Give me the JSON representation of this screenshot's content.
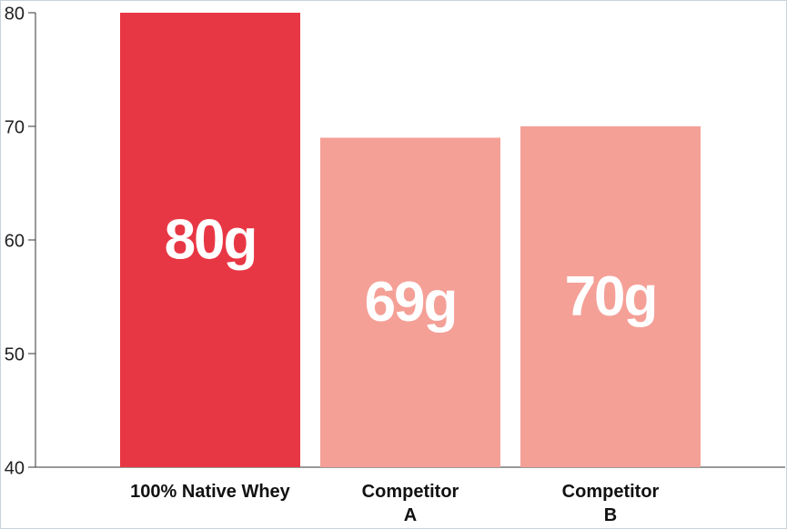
{
  "chart_data": {
    "type": "bar",
    "categories": [
      "100% Native Whey",
      "Competitor\nA",
      "Competitor\nB"
    ],
    "values": [
      80,
      69,
      70
    ],
    "value_labels": [
      "80g",
      "69g",
      "70g"
    ],
    "colors": [
      "#e83744",
      "#f4a097",
      "#f4a097"
    ],
    "ylim": [
      40,
      80
    ],
    "yticks": [
      40,
      50,
      60,
      70,
      80
    ]
  }
}
